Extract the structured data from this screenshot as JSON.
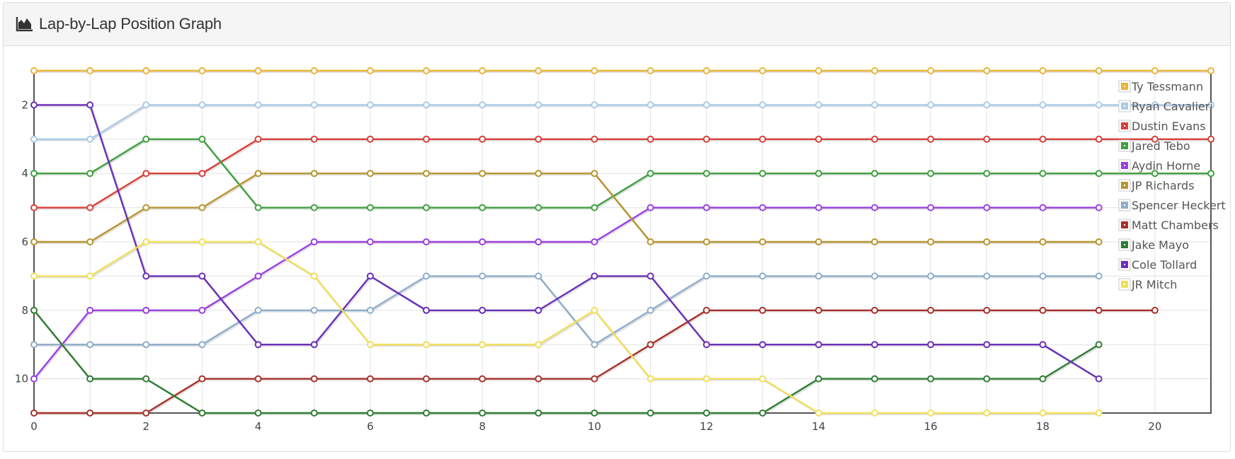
{
  "panel": {
    "title": "Lap-by-Lap Position Graph",
    "icon": "area-chart-icon"
  },
  "chart_data": {
    "type": "line",
    "title": "",
    "xlabel": "",
    "ylabel": "",
    "xlim": [
      0,
      21
    ],
    "ylim": [
      11,
      1
    ],
    "y_inverted": true,
    "grid": true,
    "legend_position": "top-right",
    "x_ticks": [
      0,
      2,
      4,
      6,
      8,
      10,
      12,
      14,
      16,
      18,
      20
    ],
    "y_ticks": [
      2,
      4,
      6,
      8,
      10
    ],
    "series": [
      {
        "name": "Ty Tessmann",
        "color": "#e8b53c",
        "x": [
          0,
          1,
          2,
          3,
          4,
          5,
          6,
          7,
          8,
          9,
          10,
          11,
          12,
          13,
          14,
          15,
          16,
          17,
          18,
          19,
          20,
          21
        ],
        "values": [
          1,
          1,
          1,
          1,
          1,
          1,
          1,
          1,
          1,
          1,
          1,
          1,
          1,
          1,
          1,
          1,
          1,
          1,
          1,
          1,
          1,
          1
        ]
      },
      {
        "name": "Ryan Cavalieri",
        "color": "#a9cbe8",
        "x": [
          0,
          1,
          2,
          3,
          4,
          5,
          6,
          7,
          8,
          9,
          10,
          11,
          12,
          13,
          14,
          15,
          16,
          17,
          18,
          19,
          20,
          21
        ],
        "values": [
          3,
          3,
          2,
          2,
          2,
          2,
          2,
          2,
          2,
          2,
          2,
          2,
          2,
          2,
          2,
          2,
          2,
          2,
          2,
          2,
          2,
          2
        ]
      },
      {
        "name": "Dustin Evans",
        "color": "#d9403a",
        "x": [
          0,
          1,
          2,
          3,
          4,
          5,
          6,
          7,
          8,
          9,
          10,
          11,
          12,
          13,
          14,
          15,
          16,
          17,
          18,
          19,
          20,
          21
        ],
        "values": [
          5,
          5,
          4,
          4,
          3,
          3,
          3,
          3,
          3,
          3,
          3,
          3,
          3,
          3,
          3,
          3,
          3,
          3,
          3,
          3,
          3,
          3
        ]
      },
      {
        "name": "Jared Tebo",
        "color": "#3fa13f",
        "x": [
          0,
          1,
          2,
          3,
          4,
          5,
          6,
          7,
          8,
          9,
          10,
          11,
          12,
          13,
          14,
          15,
          16,
          17,
          18,
          19,
          20,
          21
        ],
        "values": [
          4,
          4,
          3,
          3,
          5,
          5,
          5,
          5,
          5,
          5,
          5,
          4,
          4,
          4,
          4,
          4,
          4,
          4,
          4,
          4,
          4,
          4
        ]
      },
      {
        "name": "Aydin Horne",
        "color": "#9a3fe0",
        "x": [
          0,
          1,
          2,
          3,
          4,
          5,
          6,
          7,
          8,
          9,
          10,
          11,
          12,
          13,
          14,
          15,
          16,
          17,
          18,
          19
        ],
        "values": [
          10,
          8,
          8,
          8,
          7,
          6,
          6,
          6,
          6,
          6,
          6,
          5,
          5,
          5,
          5,
          5,
          5,
          5,
          5,
          5
        ]
      },
      {
        "name": "JP Richards",
        "color": "#b8952e",
        "x": [
          0,
          1,
          2,
          3,
          4,
          5,
          6,
          7,
          8,
          9,
          10,
          11,
          12,
          13,
          14,
          15,
          16,
          17,
          18,
          19
        ],
        "values": [
          6,
          6,
          5,
          5,
          4,
          4,
          4,
          4,
          4,
          4,
          4,
          6,
          6,
          6,
          6,
          6,
          6,
          6,
          6,
          6
        ]
      },
      {
        "name": "Spencer Heckert",
        "color": "#8faecb",
        "x": [
          0,
          1,
          2,
          3,
          4,
          5,
          6,
          7,
          8,
          9,
          10,
          11,
          12,
          13,
          14,
          15,
          16,
          17,
          18,
          19
        ],
        "values": [
          9,
          9,
          9,
          9,
          8,
          8,
          8,
          7,
          7,
          7,
          9,
          8,
          7,
          7,
          7,
          7,
          7,
          7,
          7,
          7
        ]
      },
      {
        "name": "Matt Chambers",
        "color": "#a8312b",
        "x": [
          0,
          1,
          2,
          3,
          4,
          5,
          6,
          7,
          8,
          9,
          10,
          11,
          12,
          13,
          14,
          15,
          16,
          17,
          18,
          19,
          20
        ],
        "values": [
          11,
          11,
          11,
          10,
          10,
          10,
          10,
          10,
          10,
          10,
          10,
          9,
          8,
          8,
          8,
          8,
          8,
          8,
          8,
          8,
          8
        ]
      },
      {
        "name": "Jake Mayo",
        "color": "#2f7d32",
        "x": [
          0,
          1,
          2,
          3,
          4,
          5,
          6,
          7,
          8,
          9,
          10,
          11,
          12,
          13,
          14,
          15,
          16,
          17,
          18,
          19
        ],
        "values": [
          8,
          10,
          10,
          11,
          11,
          11,
          11,
          11,
          11,
          11,
          11,
          11,
          11,
          11,
          10,
          10,
          10,
          10,
          10,
          9
        ]
      },
      {
        "name": "Cole Tollard",
        "color": "#6a2fb8",
        "x": [
          0,
          1,
          2,
          3,
          4,
          5,
          6,
          7,
          8,
          9,
          10,
          11,
          12,
          13,
          14,
          15,
          16,
          17,
          18,
          19
        ],
        "values": [
          2,
          2,
          7,
          7,
          9,
          9,
          7,
          8,
          8,
          8,
          7,
          7,
          9,
          9,
          9,
          9,
          9,
          9,
          9,
          10
        ]
      },
      {
        "name": "JR Mitch",
        "color": "#f2df5a",
        "x": [
          0,
          1,
          2,
          3,
          4,
          5,
          6,
          7,
          8,
          9,
          10,
          11,
          12,
          13,
          14,
          15,
          16,
          17,
          18,
          19
        ],
        "values": [
          7,
          7,
          6,
          6,
          6,
          7,
          9,
          9,
          9,
          9,
          8,
          10,
          10,
          10,
          11,
          11,
          11,
          11,
          11,
          11
        ]
      }
    ]
  }
}
